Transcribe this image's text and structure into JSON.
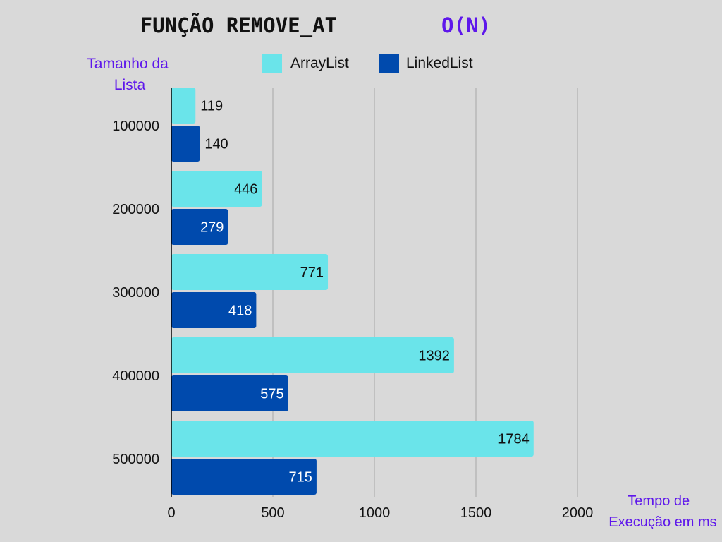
{
  "chart_data": {
    "type": "bar",
    "orientation": "horizontal",
    "title": "FUNÇÃO REMOVE_AT",
    "title_complexity": "O(N)",
    "ylabel": "Tamanho da Lista",
    "xlabel": "Tempo de Execução em ms",
    "xlim": [
      0,
      2000
    ],
    "xticks": [
      "0",
      "500",
      "1000",
      "1500",
      "2000"
    ],
    "grid": "vertical",
    "legend": "top",
    "categories": [
      "100000",
      "200000",
      "300000",
      "400000",
      "500000"
    ],
    "series": [
      {
        "name": "ArrayList",
        "color": "#6ae4ea",
        "values": [
          119,
          446,
          771,
          1392,
          1784
        ]
      },
      {
        "name": "LinkedList",
        "color": "#004aad",
        "values": [
          140,
          279,
          418,
          575,
          715
        ]
      }
    ]
  },
  "colors": {
    "background": "#d9d9d9",
    "title": "#111111",
    "accent": "#5e17eb",
    "grid": "#a6a6a6",
    "axis": "#000000"
  }
}
